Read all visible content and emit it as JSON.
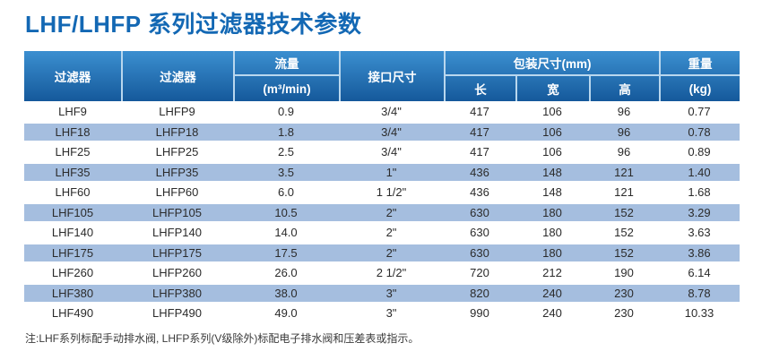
{
  "page_title": "LHF/LHFP 系列过滤器技术参数",
  "colors": {
    "title_blue": "#1368b4",
    "header_gradient_top": "#3b8fd0",
    "header_gradient_bottom": "#15599b",
    "header_separator": "#b9d7ee",
    "row_stripe_blue": "#a5bedf",
    "body_text": "#2b2b2b"
  },
  "table": {
    "header": {
      "filter_lhf": "过滤器",
      "filter_lhfp": "过滤器",
      "flow_title": "流量",
      "flow_unit": "(m³/min)",
      "port_size": "接口尺寸",
      "package_size": "包装尺寸(mm)",
      "pkg_length": "长",
      "pkg_width": "宽",
      "pkg_height": "高",
      "weight_title": "重量",
      "weight_unit": "(kg)"
    },
    "rows": [
      [
        "LHF9",
        "LHFP9",
        "0.9",
        "3/4\"",
        "417",
        "106",
        "96",
        "0.77"
      ],
      [
        "LHF18",
        "LHFP18",
        "1.8",
        "3/4\"",
        "417",
        "106",
        "96",
        "0.78"
      ],
      [
        "LHF25",
        "LHFP25",
        "2.5",
        "3/4\"",
        "417",
        "106",
        "96",
        "0.89"
      ],
      [
        "LHF35",
        "LHFP35",
        "3.5",
        "1\"",
        "436",
        "148",
        "121",
        "1.40"
      ],
      [
        "LHF60",
        "LHFP60",
        "6.0",
        "1 1/2\"",
        "436",
        "148",
        "121",
        "1.68"
      ],
      [
        "LHF105",
        "LHFP105",
        "10.5",
        "2\"",
        "630",
        "180",
        "152",
        "3.29"
      ],
      [
        "LHF140",
        "LHFP140",
        "14.0",
        "2\"",
        "630",
        "180",
        "152",
        "3.63"
      ],
      [
        "LHF175",
        "LHFP175",
        "17.5",
        "2\"",
        "630",
        "180",
        "152",
        "3.86"
      ],
      [
        "LHF260",
        "LHFP260",
        "26.0",
        "2 1/2\"",
        "720",
        "212",
        "190",
        "6.14"
      ],
      [
        "LHF380",
        "LHFP380",
        "38.0",
        "3\"",
        "820",
        "240",
        "230",
        "8.78"
      ],
      [
        "LHF490",
        "LHFP490",
        "49.0",
        "3\"",
        "990",
        "240",
        "230",
        "10.33"
      ]
    ]
  },
  "footnote": "注:LHF系列标配手动排水阀, LHFP系列(V级除外)标配电子排水阀和压差表或指示。"
}
